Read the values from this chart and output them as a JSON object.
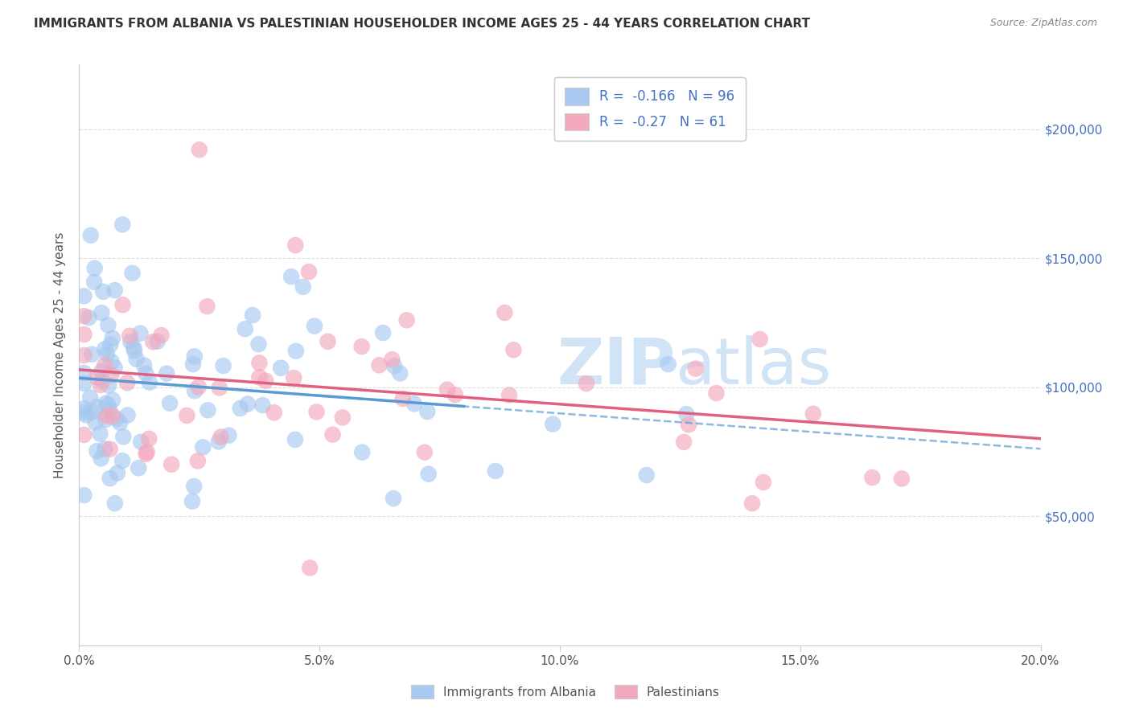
{
  "title": "IMMIGRANTS FROM ALBANIA VS PALESTINIAN HOUSEHOLDER INCOME AGES 25 - 44 YEARS CORRELATION CHART",
  "source": "Source: ZipAtlas.com",
  "ylabel": "Householder Income Ages 25 - 44 years",
  "ytick_vals": [
    50000,
    100000,
    150000,
    200000
  ],
  "albania_color": "#A8C8F0",
  "albania_color_line": "#5B9BD5",
  "palestine_color": "#F4A8BC",
  "palestine_color_line": "#E06080",
  "albania_R": -0.166,
  "albania_N": 96,
  "palestine_R": -0.27,
  "palestine_N": 61,
  "legend_label_albania": "Immigrants from Albania",
  "legend_label_palestine": "Palestinians",
  "legend_text_color": "#4472C4",
  "xmin": 0.0,
  "xmax": 20.0,
  "ymin": 0,
  "ymax": 225000,
  "watermark_color": "#D0E4F5",
  "grid_color": "#DDDDDD",
  "title_color": "#333333",
  "source_color": "#888888",
  "tick_color": "#555555",
  "right_tick_color": "#4472C4"
}
